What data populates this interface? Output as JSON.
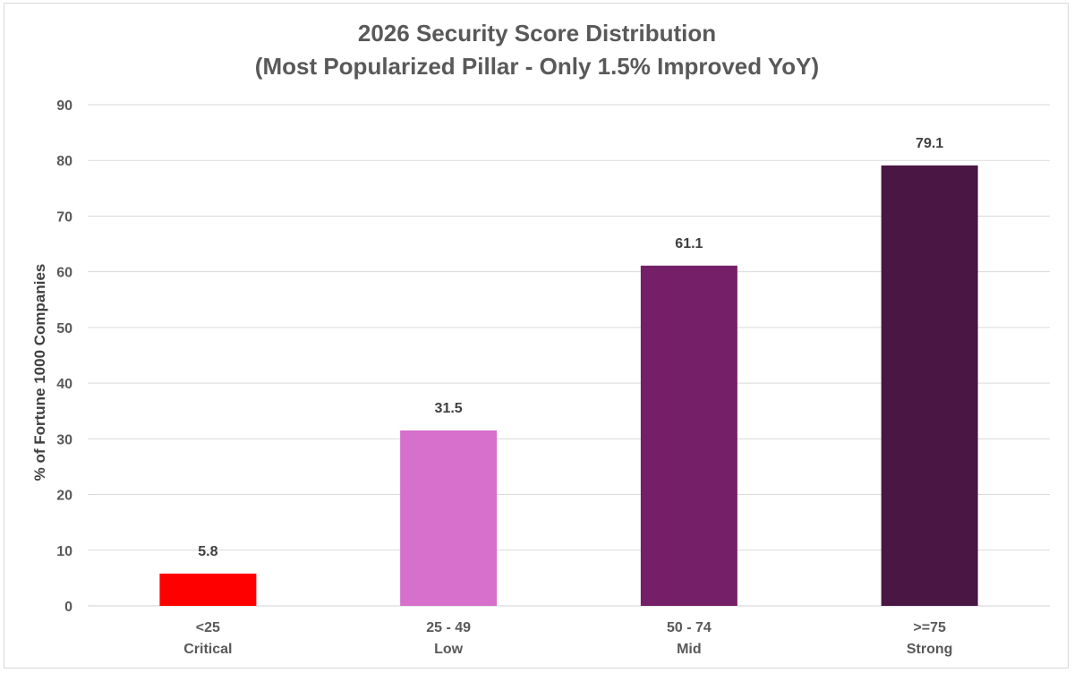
{
  "chart_data": {
    "type": "bar",
    "title": "2026 Security Score Distribution",
    "subtitle": "(Most Popularized Pillar -  Only 1.5% Improved YoY)",
    "ylabel": "% of Fortune 1000 Companies",
    "xlabel": "",
    "ylim": [
      0,
      90
    ],
    "yticks": [
      0,
      10,
      20,
      30,
      40,
      50,
      60,
      70,
      80,
      90
    ],
    "grid": true,
    "categories": [
      {
        "range": "<25",
        "name": "Critical"
      },
      {
        "range": "25 - 49",
        "name": "Low"
      },
      {
        "range": "50 - 74",
        "name": "Mid"
      },
      {
        "range": ">=75",
        "name": "Strong"
      }
    ],
    "values": [
      5.8,
      31.5,
      61.1,
      79.1
    ],
    "data_labels": [
      "5.8",
      "31.5",
      "61.1",
      "79.1"
    ],
    "colors": [
      "#ff0000",
      "#d670cc",
      "#741f67",
      "#4a1643"
    ]
  }
}
